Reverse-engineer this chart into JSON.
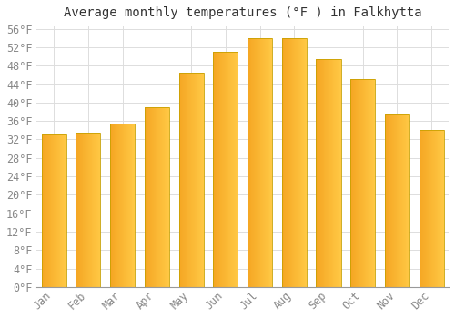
{
  "title": "Average monthly temperatures (°F ) in Falkhytta",
  "months": [
    "Jan",
    "Feb",
    "Mar",
    "Apr",
    "May",
    "Jun",
    "Jul",
    "Aug",
    "Sep",
    "Oct",
    "Nov",
    "Dec"
  ],
  "values": [
    33,
    33.5,
    35.5,
    39,
    46.5,
    51,
    54,
    54,
    49.5,
    45,
    37.5,
    34
  ],
  "bar_color_left": "#F5A623",
  "bar_color_right": "#FFC844",
  "bar_edge_color": "#C8A000",
  "background_color": "#FFFFFF",
  "grid_color": "#DDDDDD",
  "ytick_min": 0,
  "ytick_max": 56,
  "ytick_step": 4,
  "title_fontsize": 10,
  "tick_fontsize": 8.5,
  "tick_color": "#888888"
}
